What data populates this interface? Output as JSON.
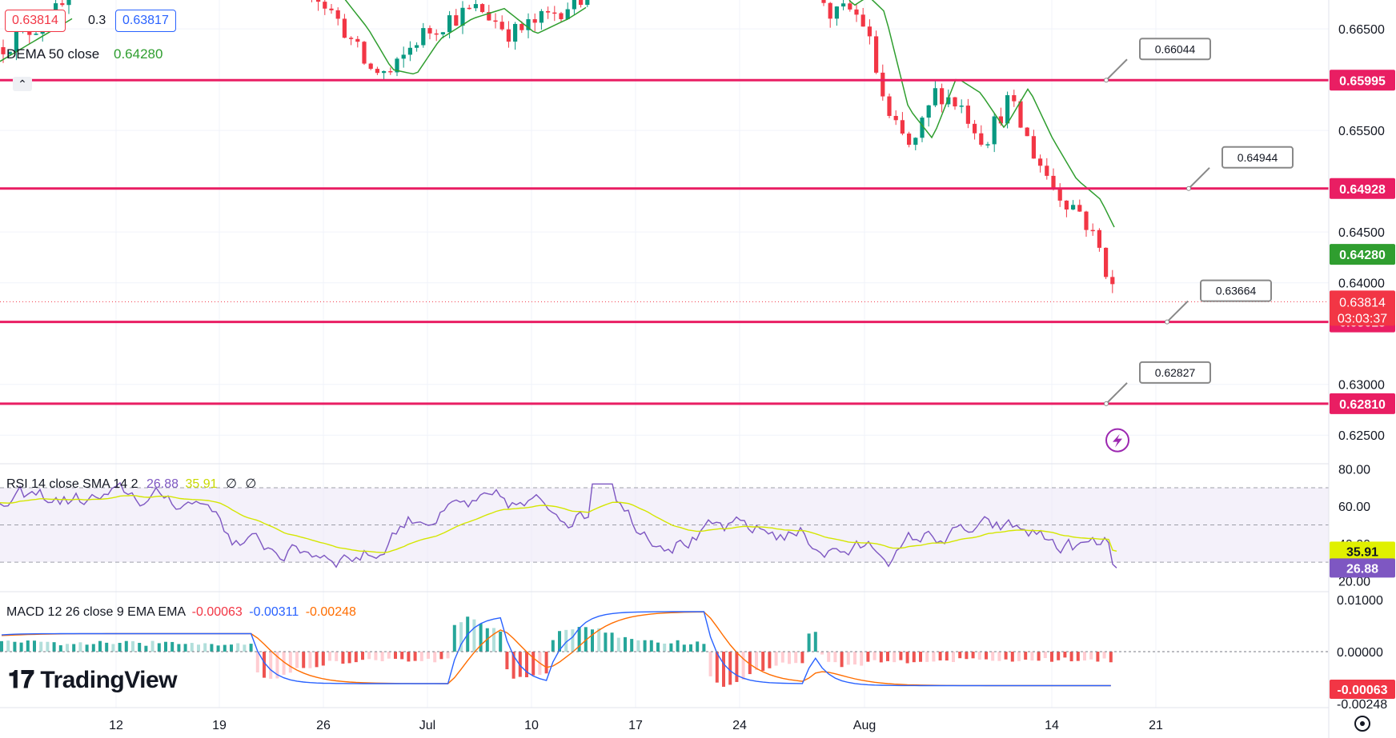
{
  "header": {
    "bid": "0.63814",
    "spread": "0.3",
    "ask": "0.63817",
    "dema_label": "DEMA 50 close",
    "dema_value": "0.64280",
    "collapse_icon": "chevron-up-icon"
  },
  "rsi_legend": {
    "label": "RSI 14 close SMA 14 2",
    "rsi": "26.88",
    "sma": "35.91",
    "extra1": "∅",
    "extra2": "∅"
  },
  "macd_legend": {
    "label": "MACD 12 26 close 9 EMA EMA",
    "hist": "-0.00063",
    "macd": "-0.00311",
    "signal": "-0.00248"
  },
  "brand": {
    "name": "TradingView",
    "icon": "tradingview-logo-icon"
  },
  "colors": {
    "level_line": "#e91e63",
    "up": "#089981",
    "down": "#f23645",
    "dema": "#2f9e2f",
    "rsi": "#7e57c2",
    "rsi_sma": "#d4e600",
    "macd": "#2962ff",
    "signal": "#ff6d00",
    "alert": "#9c27b0"
  },
  "chart_data": [
    {
      "type": "candlestick",
      "price_axis_ticks": [
        "0.66500",
        "0.65500",
        "0.64500",
        "0.64000",
        "0.63000",
        "0.62500"
      ],
      "ylim": [
        0.6225,
        0.668
      ],
      "x_ticks": [
        "12",
        "19",
        "26",
        "Jul",
        "10",
        "17",
        "24",
        "Aug",
        "14",
        "21"
      ],
      "horizontal_levels": [
        {
          "value": 0.65995,
          "label": "0.65995",
          "callout": "0.66044"
        },
        {
          "value": 0.64928,
          "label": "0.64928",
          "callout": "0.64944"
        },
        {
          "value": 0.63615,
          "label": "0.63615",
          "callout": "0.63664"
        },
        {
          "value": 0.6281,
          "label": "0.62810",
          "callout": "0.62827"
        }
      ],
      "last_price": {
        "value": 0.63814,
        "label": "0.63814",
        "countdown": "03:03:37"
      },
      "dema": {
        "label": "0.64280",
        "value": 0.6428
      },
      "alert_icon": "lightning-icon"
    },
    {
      "type": "line",
      "name": "RSI",
      "ticks": [
        "80.00",
        "60.00",
        "40.00",
        "20.00"
      ],
      "ylim": [
        15,
        82
      ],
      "bands": [
        30,
        50,
        70
      ],
      "rsi_last": "26.88",
      "sma_last": "35.91"
    },
    {
      "type": "bar",
      "name": "MACD",
      "ticks": [
        "0.01000",
        "0.00000",
        "-0.00063",
        "-0.00248"
      ],
      "hist_last": "-0.00063"
    }
  ]
}
